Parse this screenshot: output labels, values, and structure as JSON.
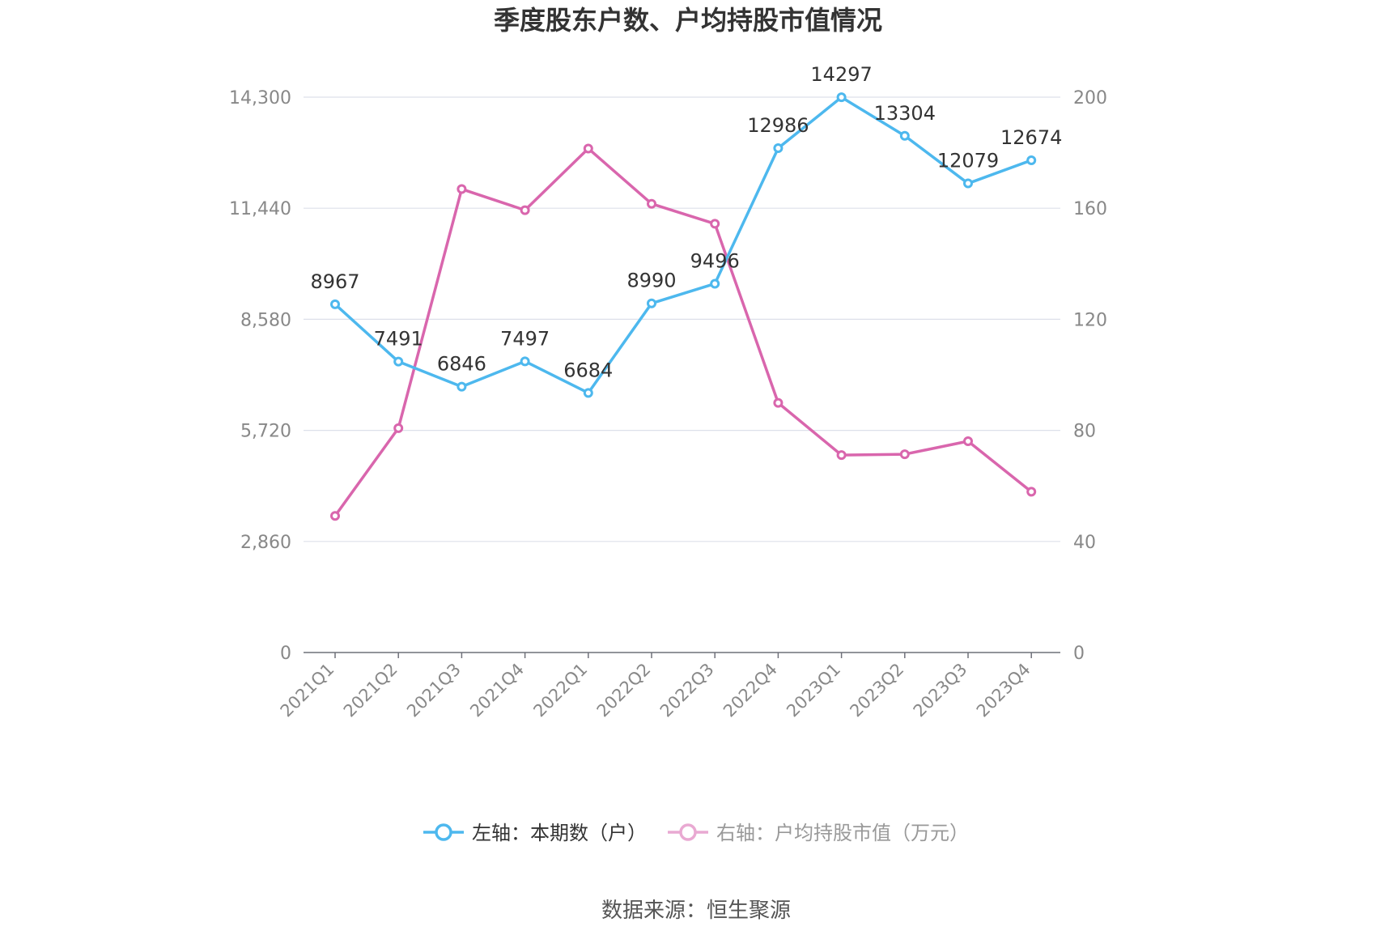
{
  "chart_data": {
    "type": "line",
    "title": "季度股东户数、户均持股市值情况",
    "categories": [
      "2021Q1",
      "2021Q2",
      "2021Q3",
      "2021Q4",
      "2022Q1",
      "2022Q2",
      "2022Q3",
      "2022Q4",
      "2023Q1",
      "2023Q2",
      "2023Q3",
      "2023Q4"
    ],
    "left_axis": {
      "min": 0,
      "max": 14300,
      "ticks": [
        "0",
        "2,860",
        "5,720",
        "8,580",
        "11,440",
        "14,300"
      ]
    },
    "right_axis": {
      "min": 0,
      "max": 200,
      "ticks": [
        "0",
        "40",
        "80",
        "120",
        "160",
        "200"
      ]
    },
    "series": [
      {
        "name": "左轴：本期数（户）",
        "axis": "left",
        "color": "#4db8ee",
        "values": [
          8967,
          7491,
          6846,
          7497,
          6684,
          8990,
          9496,
          12986,
          14297,
          13304,
          12079,
          12674
        ],
        "labels": [
          "8967",
          "7491",
          "6846",
          "7497",
          "6684",
          "8990",
          "9496",
          "12986",
          "14297",
          "13304",
          "12079",
          "12674"
        ]
      },
      {
        "name": "右轴：户均持股市值（万元）",
        "axis": "right",
        "color": "#d966ad",
        "values": [
          49.2,
          80.8,
          166.9,
          159.3,
          181.5,
          161.6,
          154.4,
          89.9,
          71.1,
          71.4,
          76.1,
          57.9
        ]
      }
    ],
    "grid": true,
    "legend_position": "bottom"
  },
  "legend_colors": {
    "blue_text": "#333333",
    "pink_text": "#999999",
    "pink_marker": "#e9a9d2"
  },
  "source": "数据来源：恒生聚源"
}
